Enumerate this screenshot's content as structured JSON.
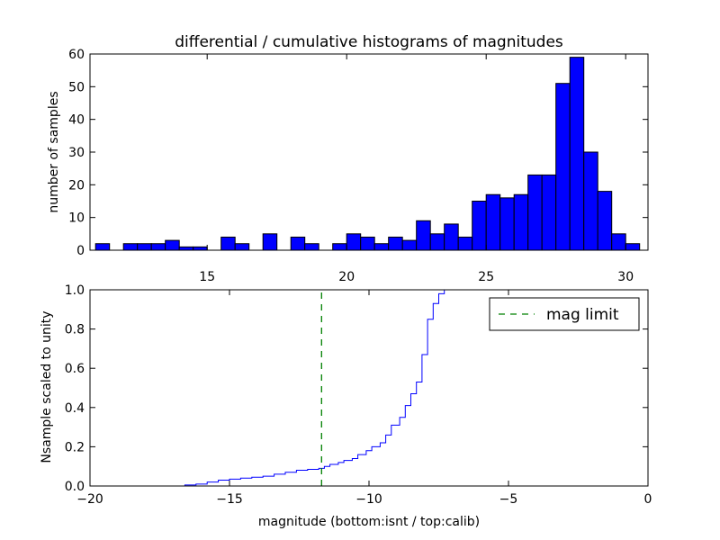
{
  "chart_data": [
    {
      "type": "bar",
      "title": "differential / cumulative histograms of magnitudes",
      "ylabel": "number of samples",
      "xlim": [
        10.8,
        30.8
      ],
      "ylim": [
        0,
        60
      ],
      "bin_width": 0.5,
      "bar_color": "#0000ff",
      "x_ticks": [
        15,
        20,
        25,
        30
      ],
      "y_ticks": [
        0,
        10,
        20,
        30,
        40,
        50,
        60
      ],
      "bins": [
        {
          "left": 13.8,
          "value": 2
        },
        {
          "left": 14.3,
          "value": 0
        },
        {
          "left": 14.8,
          "value": 2
        },
        {
          "left": 15.3,
          "value": 2
        },
        {
          "left": 15.8,
          "value": 2
        },
        {
          "left": 16.3,
          "value": 3
        },
        {
          "left": 16.8,
          "value": 1
        },
        {
          "left": 17.3,
          "value": 1
        },
        {
          "left": 17.8,
          "value": 0
        },
        {
          "left": 18.3,
          "value": 4
        },
        {
          "left": 18.8,
          "value": 2
        },
        {
          "left": 19.3,
          "value": 0
        },
        {
          "left": 19.8,
          "value": 5
        },
        {
          "left": 20.3,
          "value": 0
        },
        {
          "left": 20.8,
          "value": 4
        },
        {
          "left": 21.3,
          "value": 2
        },
        {
          "left": 21.8,
          "value": 0
        },
        {
          "left": 22.3,
          "value": 2
        },
        {
          "left": 22.8,
          "value": 5
        },
        {
          "left": 23.3,
          "value": 4
        },
        {
          "left": 23.8,
          "value": 2
        },
        {
          "left": 24.3,
          "value": 4
        },
        {
          "left": 24.8,
          "value": 3
        },
        {
          "left": 25.3,
          "value": 9
        },
        {
          "left": 25.8,
          "value": 5
        },
        {
          "left": 26.3,
          "value": 8
        },
        {
          "left": 26.8,
          "value": 4
        },
        {
          "left": 27.3,
          "value": 15
        },
        {
          "left": 27.8,
          "value": 17
        },
        {
          "left": 28.3,
          "value": 16
        },
        {
          "left": 28.8,
          "value": 17
        },
        {
          "left": 29.3,
          "value": 23
        },
        {
          "left": 29.8,
          "value": 23
        },
        {
          "left": 30.3,
          "value": 51
        },
        {
          "left": 30.8,
          "value": 59
        },
        {
          "left": 31.3,
          "value": 30
        },
        {
          "left": 31.8,
          "value": 18
        },
        {
          "left": 32.3,
          "value": 5
        },
        {
          "left": 32.8,
          "value": 2
        }
      ]
    },
    {
      "type": "line",
      "style": "step",
      "xlabel": "magnitude (bottom:isnt / top:calib)",
      "ylabel": "Nsample scaled to unity",
      "xlim": [
        -20,
        0
      ],
      "ylim": [
        0,
        1.0
      ],
      "line_color": "#0000ff",
      "x_ticks": [
        "−20",
        "−15",
        "−10",
        "−5",
        "0"
      ],
      "x_tick_values": [
        -20,
        -15,
        -10,
        -5,
        0
      ],
      "y_ticks": [
        "0.0",
        "0.2",
        "0.4",
        "0.6",
        "0.8",
        "1.0"
      ],
      "y_tick_values": [
        0,
        0.2,
        0.4,
        0.6,
        0.8,
        1.0
      ],
      "series": [
        {
          "x": [
            -20,
            -16.6,
            -16.2,
            -15.8,
            -15.4,
            -15.0,
            -14.6,
            -14.2,
            -13.8,
            -13.4,
            -13.0,
            -12.6,
            -12.2,
            -11.8,
            -11.6,
            -11.4,
            -11.1,
            -10.9,
            -10.6,
            -10.4,
            -10.1,
            -9.9,
            -9.6,
            -9.4,
            -9.2,
            -8.9,
            -8.7,
            -8.5,
            -8.3,
            -8.1,
            -7.9,
            -7.7,
            -7.5,
            -7.3,
            -7.0,
            -6.7,
            0
          ],
          "y": [
            0.0,
            0.005,
            0.01,
            0.02,
            0.03,
            0.035,
            0.04,
            0.045,
            0.05,
            0.06,
            0.07,
            0.08,
            0.085,
            0.09,
            0.1,
            0.11,
            0.12,
            0.13,
            0.14,
            0.16,
            0.18,
            0.2,
            0.22,
            0.26,
            0.31,
            0.35,
            0.41,
            0.47,
            0.53,
            0.67,
            0.85,
            0.93,
            0.98,
            1.0,
            1.0,
            1.0,
            1.0
          ]
        },
        {
          "name": "mag limit",
          "x": [
            -11.7,
            -11.7
          ],
          "y": [
            0,
            1.0
          ],
          "color": "#008000",
          "dash": true
        }
      ],
      "legend": {
        "placement": "top-right",
        "entries": [
          "mag limit"
        ]
      }
    }
  ]
}
